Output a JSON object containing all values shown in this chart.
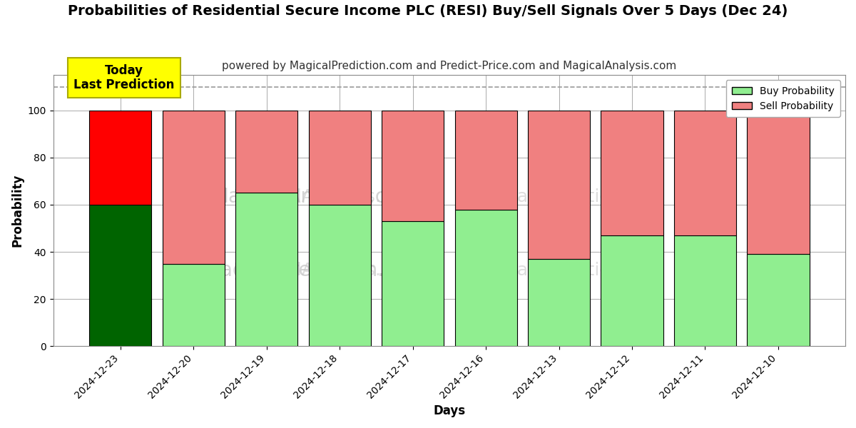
{
  "title": "Probabilities of Residential Secure Income PLC (RESI) Buy/Sell Signals Over 5 Days (Dec 24)",
  "subtitle": "powered by MagicalPrediction.com and Predict-Price.com and MagicalAnalysis.com",
  "xlabel": "Days",
  "ylabel": "Probability",
  "dates": [
    "2024-12-23",
    "2024-12-20",
    "2024-12-19",
    "2024-12-18",
    "2024-12-17",
    "2024-12-16",
    "2024-12-13",
    "2024-12-12",
    "2024-12-11",
    "2024-12-10"
  ],
  "buy_values": [
    60,
    35,
    65,
    60,
    53,
    58,
    37,
    47,
    47,
    39
  ],
  "sell_values": [
    40,
    65,
    35,
    40,
    47,
    42,
    63,
    53,
    53,
    61
  ],
  "today_bar_index": 0,
  "today_buy_color": "#006400",
  "today_sell_color": "#ff0000",
  "normal_buy_color": "#90ee90",
  "normal_sell_color": "#f08080",
  "bar_edge_color": "#000000",
  "background_color": "#ffffff",
  "grid_color": "#aaaaaa",
  "annotation_text": "Today\nLast Prediction",
  "annotation_bg_color": "#ffff00",
  "dashed_line_y": 110,
  "ylim": [
    0,
    115
  ],
  "yticks": [
    0,
    20,
    40,
    60,
    80,
    100
  ],
  "legend_buy_label": "Buy Probability",
  "legend_sell_label": "Sell Probability",
  "watermark_color": "#c8c8c8",
  "title_fontsize": 14,
  "subtitle_fontsize": 11,
  "bar_width": 0.85
}
